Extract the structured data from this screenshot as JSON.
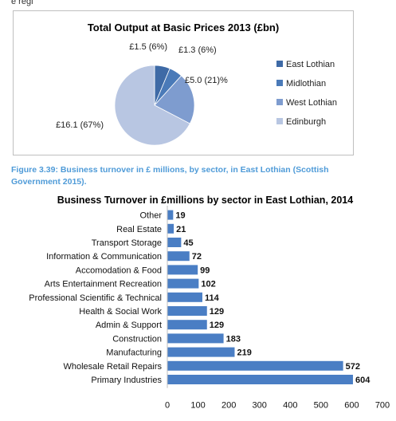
{
  "top_text": "e regi",
  "caption": "Figure 3.39: Business turnover in £ millions, by sector, in East Lothian (Scottish Government 2015).",
  "chart_data": [
    {
      "type": "pie",
      "title": "Total Output at Basic Prices 2013 (£bn)",
      "slices": [
        {
          "name": "East  Lothian",
          "value": 1.5,
          "label": "£1.5 (6%)",
          "color": "#3e6aa6"
        },
        {
          "name": "Midlothian",
          "value": 1.3,
          "label": "£1.3 (6%)",
          "color": "#4a7ab8"
        },
        {
          "name": "West Lothian",
          "value": 5.0,
          "label": "£5.0 (21)%",
          "color": "#7e9ccf"
        },
        {
          "name": "Edinburgh",
          "value": 16.1,
          "label": "£16.1  (67%)",
          "color": "#b8c6e2"
        }
      ],
      "legend_position": "right"
    },
    {
      "type": "bar",
      "orientation": "horizontal",
      "title": "Business Turnover in £millions by sector in East Lothian, 2014",
      "categories": [
        "Other",
        "Real Estate",
        "Transport Storage",
        "Information & Communication",
        "Accomodation & Food",
        "Arts Entertainment Recreation",
        "Professional Scientific & Technical",
        "Health & Social Work",
        "Admin & Support",
        "Construction",
        "Manufacturing",
        "Wholesale Retail Repairs",
        "Primary Industries"
      ],
      "values": [
        19,
        21,
        45,
        72,
        99,
        102,
        114,
        129,
        129,
        183,
        219,
        572,
        604
      ],
      "xlim": [
        0,
        700
      ],
      "xticks": [
        "0",
        "100",
        "200",
        "300",
        "400",
        "500",
        "600",
        "700"
      ],
      "color": "#4a7ec4",
      "grid": false
    }
  ]
}
